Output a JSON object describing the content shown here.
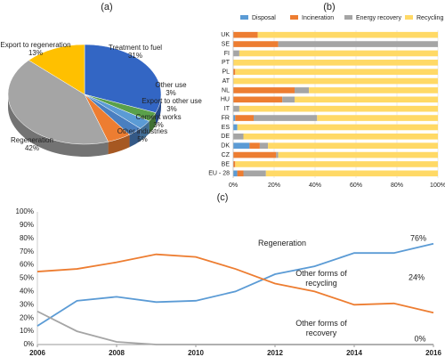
{
  "chart_data": [
    {
      "type": "pie",
      "panel": "(a)",
      "categories": [
        "Treatment to fuel",
        "Other use",
        "Export to other use",
        "Cement works",
        "Other industries",
        "Regeneration",
        "Export to regeneration"
      ],
      "values": [
        31,
        3,
        3,
        3,
        5,
        42,
        13
      ],
      "value_labels": [
        "31%",
        "3%",
        "3%",
        "3%",
        "5%",
        "42%",
        "13%"
      ],
      "colors": [
        "#3366c4",
        "#5aa04a",
        "#5b9bd5",
        "#4a7fc0",
        "#ed7d31",
        "#a5a5a5",
        "#ffc000"
      ]
    },
    {
      "type": "bar",
      "orientation": "horizontal",
      "stacked": true,
      "panel": "(b)",
      "categories": [
        "UK",
        "SE",
        "FI",
        "PT",
        "PL",
        "AT",
        "NL",
        "HU",
        "IT",
        "FR",
        "ES",
        "DE",
        "DK",
        "CZ",
        "BE",
        "EU - 28"
      ],
      "series": [
        {
          "name": "Disposal",
          "color": "#5b9bd5",
          "values": [
            0,
            0,
            0,
            0,
            0,
            0,
            0,
            0,
            0,
            1,
            2,
            0,
            8,
            0,
            0,
            2
          ]
        },
        {
          "name": "Incineration",
          "color": "#ed7d31",
          "values": [
            12,
            22,
            0,
            0,
            1,
            0,
            30,
            24,
            0,
            9,
            0,
            0,
            5,
            21,
            1,
            3
          ]
        },
        {
          "name": "Energy recovery",
          "color": "#a5a5a5",
          "values": [
            0,
            78,
            3,
            0,
            0,
            0,
            7,
            6,
            3,
            31,
            0,
            5,
            4,
            1,
            0,
            11
          ]
        },
        {
          "name": "Recycling",
          "color": "#ffd966",
          "values": [
            88,
            0,
            97,
            100,
            99,
            100,
            63,
            70,
            97,
            59,
            98,
            95,
            83,
            78,
            99,
            84
          ]
        }
      ],
      "xlim": [
        0,
        100
      ],
      "xticks": [
        {
          "value": 0,
          "label": "0%"
        },
        {
          "value": 20,
          "label": "20%"
        },
        {
          "value": 40,
          "label": "40%"
        },
        {
          "value": 60,
          "label": "60%"
        },
        {
          "value": 80,
          "label": "80%"
        },
        {
          "value": 100,
          "label": "100%"
        }
      ],
      "grid": true,
      "legend": "top"
    },
    {
      "type": "line",
      "panel": "(c)",
      "x": [
        2006,
        2007,
        2008,
        2009,
        2010,
        2011,
        2012,
        2013,
        2014,
        2015,
        2016
      ],
      "series": [
        {
          "name": "Regeneration",
          "color": "#5b9bd5",
          "values": [
            14,
            33,
            36,
            32,
            33,
            40,
            53,
            59,
            69,
            69,
            76
          ],
          "value_labels": [
            null,
            null,
            null,
            null,
            null,
            null,
            null,
            null,
            null,
            null,
            "76%"
          ]
        },
        {
          "name": "Other forms of recycling",
          "color": "#ed7d31",
          "values": [
            55,
            57,
            62,
            68,
            66,
            57,
            46,
            40,
            30,
            31,
            24
          ],
          "value_labels": [
            null,
            null,
            null,
            null,
            null,
            null,
            null,
            null,
            null,
            null,
            "24%"
          ]
        },
        {
          "name": "Other forms of recovery",
          "color": "#a5a5a5",
          "values": [
            25,
            10,
            2,
            0,
            0,
            0,
            0,
            0,
            0,
            0,
            0
          ],
          "value_labels": [
            null,
            null,
            null,
            null,
            null,
            null,
            null,
            null,
            null,
            null,
            "0%"
          ]
        }
      ],
      "xlim": [
        2006,
        2016
      ],
      "xticks": [
        2006,
        2008,
        2010,
        2012,
        2014,
        2016
      ],
      "ylim": [
        0,
        100
      ],
      "yticks": [
        {
          "value": 0,
          "label": "0%"
        },
        {
          "value": 10,
          "label": "10%"
        },
        {
          "value": 20,
          "label": "20%"
        },
        {
          "value": 30,
          "label": "30%"
        },
        {
          "value": 40,
          "label": "40%"
        },
        {
          "value": 50,
          "label": "50%"
        },
        {
          "value": 60,
          "label": "60%"
        },
        {
          "value": 70,
          "label": "70%"
        },
        {
          "value": 80,
          "label": "80%"
        },
        {
          "value": 90,
          "label": "90%"
        },
        {
          "value": 100,
          "label": "100%"
        }
      ],
      "grid": false
    }
  ]
}
